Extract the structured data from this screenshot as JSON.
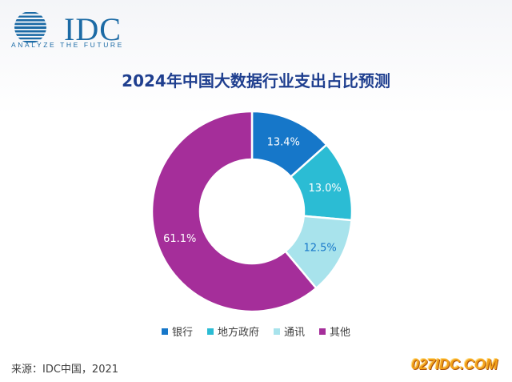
{
  "brand": {
    "logo_text": "IDC",
    "tagline": "ANALYZE THE FUTURE",
    "color": "#1b6aa5"
  },
  "chart_data": {
    "type": "pie",
    "title": "2024年中国大数据行业支出占比预测",
    "categories": [
      "银行",
      "地方政府",
      "通讯",
      "其他"
    ],
    "values": [
      13.4,
      13.0,
      12.5,
      61.1
    ],
    "labels": [
      "13.4%",
      "13.0%",
      "12.5%",
      "61.1%"
    ],
    "colors": [
      "#1677c9",
      "#2bbcd4",
      "#a8e3ec",
      "#a52e9a"
    ],
    "label_colors": [
      "#ffffff",
      "#ffffff",
      "#1677c9",
      "#ffffff"
    ],
    "donut": true,
    "legend_position": "bottom"
  },
  "source": "来源：IDC中国，2021",
  "watermark": "027IDC.COM"
}
